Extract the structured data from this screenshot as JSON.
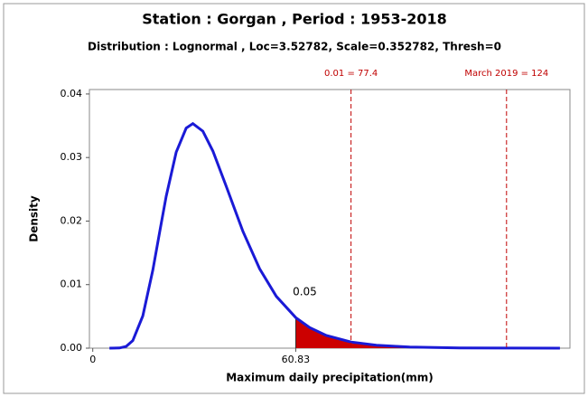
{
  "chart_data": {
    "type": "line",
    "title": "Station : Gorgan , Period : 1953-2018",
    "subtitle": "Distribution : Lognormal , Loc=3.52782, Scale=0.352782, Thresh=0",
    "x_label": "Maximum daily precipitation(mm)",
    "y_label": "Density",
    "x": [
      5,
      8,
      10,
      12,
      15,
      18,
      20,
      22,
      25,
      28,
      30,
      33,
      36,
      40,
      45,
      50,
      55,
      60.83,
      65,
      70,
      77.4,
      85,
      95,
      110,
      124,
      140
    ],
    "values": [
      0,
      3e-05,
      0.00027,
      0.00119,
      0.00507,
      0.01228,
      0.01813,
      0.02389,
      0.03083,
      0.03463,
      0.03534,
      0.03414,
      0.03102,
      0.02547,
      0.01838,
      0.0125,
      0.00816,
      0.00481,
      0.00324,
      0.002,
      0.00097,
      0.00046,
      0.00017,
      4e-05,
      1e-05,
      0
    ],
    "color": "#1a1ad6",
    "shaded_area": {
      "from": 60.83,
      "probability": 0.05,
      "color": "#cc0000"
    },
    "reference_lines": [
      {
        "value": 77.4,
        "label": "0.01 = 77.4"
      },
      {
        "value": 124,
        "label": "March 2019 = 124"
      }
    ],
    "reference_color": "#c00000",
    "xlim": [
      -1,
      143
    ],
    "xticks": [
      0,
      60.83
    ],
    "ylim": [
      0,
      0.0407
    ],
    "yticks": [
      {
        "value": 0,
        "label": "0.00"
      },
      0.01,
      0.02,
      0.03,
      0.04
    ]
  }
}
